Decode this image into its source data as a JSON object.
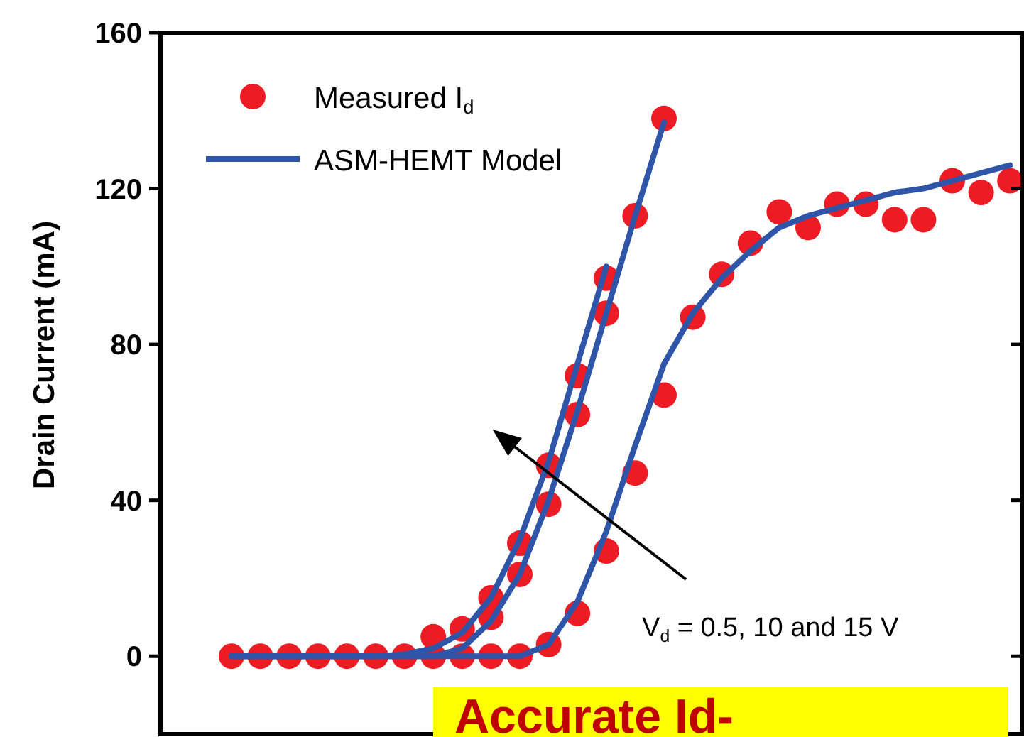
{
  "chart_data": {
    "type": "scatter",
    "ylabel": "Drain Current (mA)",
    "ylim": [
      -20,
      160
    ],
    "yticks": [
      0,
      40,
      80,
      120,
      160
    ],
    "categories": [
      null,
      null,
      null,
      null,
      null,
      null,
      null,
      null,
      null,
      null,
      null,
      null,
      null,
      null,
      null,
      null,
      null,
      null,
      null,
      null,
      null,
      null,
      null,
      null,
      null,
      null,
      null,
      null
    ],
    "legend": "top left",
    "grid": false,
    "tick_labels": "y",
    "series": [
      {
        "name": "Measured I$_{d}$",
        "marker": "circle",
        "color": "#ed1c24",
        "values": [
          0,
          0,
          0,
          0,
          0,
          0,
          0,
          0,
          0,
          0,
          0,
          3,
          11,
          27,
          47,
          67,
          87,
          98,
          106,
          114,
          110,
          116,
          116,
          112,
          112,
          122,
          119,
          122
        ]
      },
      {
        "marker": "circle",
        "color": "#ed1c24",
        "values": [
          null,
          null,
          null,
          null,
          null,
          null,
          null,
          null,
          null,
          10,
          21,
          39,
          62,
          88,
          113,
          138,
          null,
          null,
          null,
          null,
          null,
          null,
          null,
          null,
          null,
          null,
          null,
          null
        ]
      },
      {
        "marker": "circle",
        "color": "#ed1c24",
        "values": [
          null,
          null,
          null,
          null,
          null,
          null,
          null,
          5,
          7,
          15,
          29,
          49,
          72,
          97,
          null,
          null,
          null,
          null,
          null,
          null,
          null,
          null,
          null,
          null,
          null,
          null,
          null,
          null
        ]
      },
      {
        "type": "line",
        "name": "ASM-HEMT Model",
        "color": "#2e55a8",
        "values": [
          0,
          0,
          0,
          0,
          0,
          0,
          0,
          0,
          0,
          0,
          0,
          3,
          14,
          32,
          54,
          75,
          88,
          97,
          104,
          110,
          113,
          115,
          117,
          119,
          120,
          122,
          124,
          126
        ]
      },
      {
        "type": "line",
        "color": "#2e55a8",
        "values": [
          0,
          0,
          0,
          0,
          0,
          0,
          0,
          0,
          2,
          9,
          21,
          40,
          63,
          88,
          113,
          137,
          null,
          null,
          null,
          null,
          null,
          null,
          null,
          null,
          null,
          null,
          null,
          null
        ]
      },
      {
        "type": "line",
        "color": "#2e55a8",
        "values": [
          0,
          0,
          0,
          0,
          0,
          0,
          0.5,
          2,
          6,
          15,
          30,
          50,
          75,
          100,
          null,
          null,
          null,
          null,
          null,
          null,
          null,
          null,
          null,
          null,
          null,
          null,
          null,
          null
        ]
      }
    ],
    "annotations": [
      "V$_{d}$ = 0.5, 10 and 15 V",
      "Accurate Id-"
    ]
  }
}
